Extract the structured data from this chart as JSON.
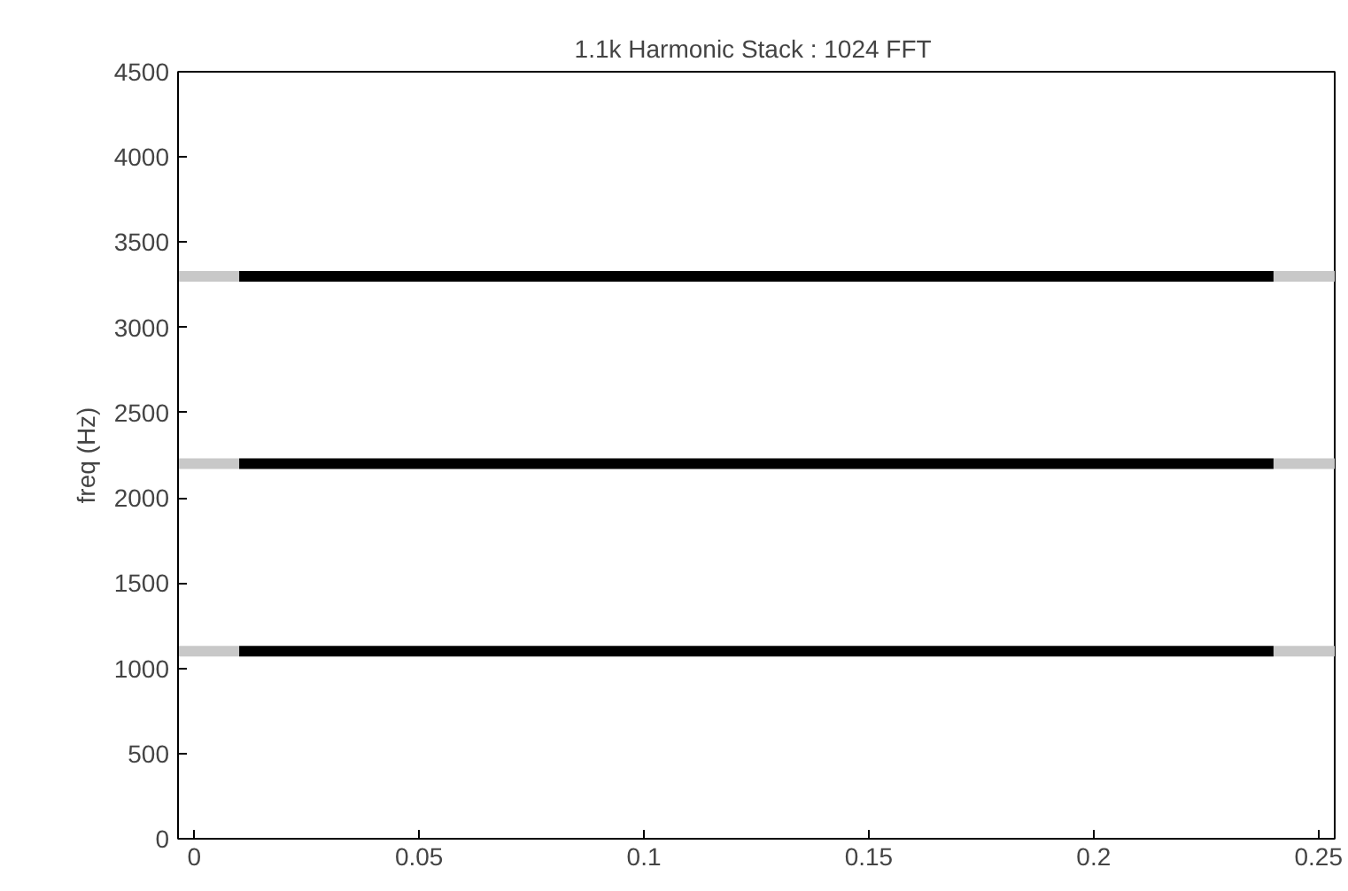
{
  "chart_data": {
    "type": "line",
    "title": "1.1k Harmonic Stack :  1024 FFT",
    "ylabel": "freq (Hz)",
    "xlim": [
      -0.0036,
      0.2536
    ],
    "ylim": [
      0,
      4500
    ],
    "xticks": [
      0,
      0.05,
      0.1,
      0.15,
      0.2,
      0.25
    ],
    "yticks": [
      0,
      500,
      1000,
      1500,
      2000,
      2500,
      3000,
      3500,
      4000,
      4500
    ],
    "marker": "none",
    "line_style": "solid",
    "series": [
      {
        "color": "#c8c8c8",
        "x": [
          -0.0036,
          0.01
        ],
        "values": [
          1100,
          1100
        ]
      },
      {
        "color": "#000000",
        "x": [
          0.01,
          0.24
        ],
        "values": [
          1100,
          1100
        ]
      },
      {
        "color": "#c8c8c8",
        "x": [
          0.24,
          0.2536
        ],
        "values": [
          1100,
          1100
        ]
      },
      {
        "color": "#c8c8c8",
        "x": [
          -0.0036,
          0.01
        ],
        "values": [
          2200,
          2200
        ]
      },
      {
        "color": "#000000",
        "x": [
          0.01,
          0.24
        ],
        "values": [
          2200,
          2200
        ]
      },
      {
        "color": "#c8c8c8",
        "x": [
          0.24,
          0.2536
        ],
        "values": [
          2200,
          2200
        ]
      },
      {
        "color": "#c8c8c8",
        "x": [
          -0.0036,
          0.01
        ],
        "values": [
          3300,
          3300
        ]
      },
      {
        "color": "#000000",
        "x": [
          0.01,
          0.24
        ],
        "values": [
          3300,
          3300
        ]
      },
      {
        "color": "#c8c8c8",
        "x": [
          0.24,
          0.2536
        ],
        "values": [
          3300,
          3300
        ]
      }
    ]
  }
}
